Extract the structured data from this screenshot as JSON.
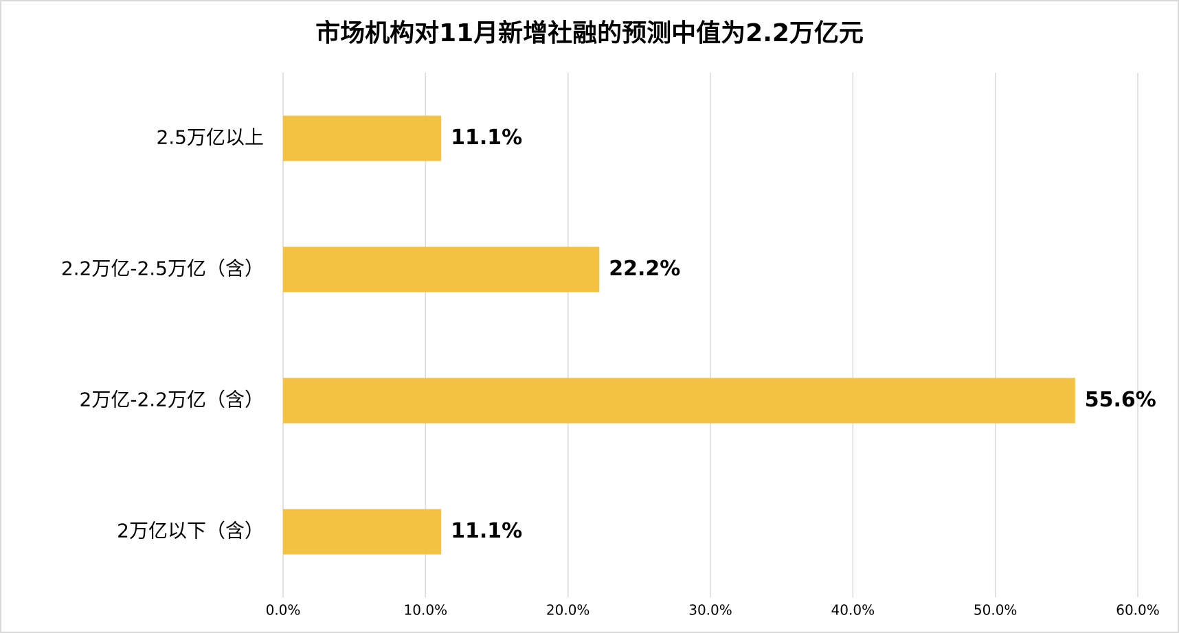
{
  "chart_data": {
    "type": "barh",
    "title": "市场机构对11月新增社融的预测中值为2.2万亿元",
    "categories": [
      "2.5万亿以上",
      "2.2万亿-2.5万亿（含）",
      "2万亿-2.2万亿（含）",
      "2万亿以下（含）"
    ],
    "values": [
      11.1,
      22.2,
      55.6,
      11.1
    ],
    "value_labels": [
      "11.1%",
      "22.2%",
      "55.6%",
      "11.1%"
    ],
    "color": "#f4c242",
    "xlim": [
      0,
      60
    ],
    "xticks": [
      {
        "value": 0,
        "label": "0.0%"
      },
      {
        "value": 10,
        "label": "10.0%"
      },
      {
        "value": 20,
        "label": "20.0%"
      },
      {
        "value": 30,
        "label": "30.0%"
      },
      {
        "value": 40,
        "label": "40.0%"
      },
      {
        "value": 50,
        "label": "50.0%"
      },
      {
        "value": 60,
        "label": "60.0%"
      }
    ],
    "grid": true
  }
}
